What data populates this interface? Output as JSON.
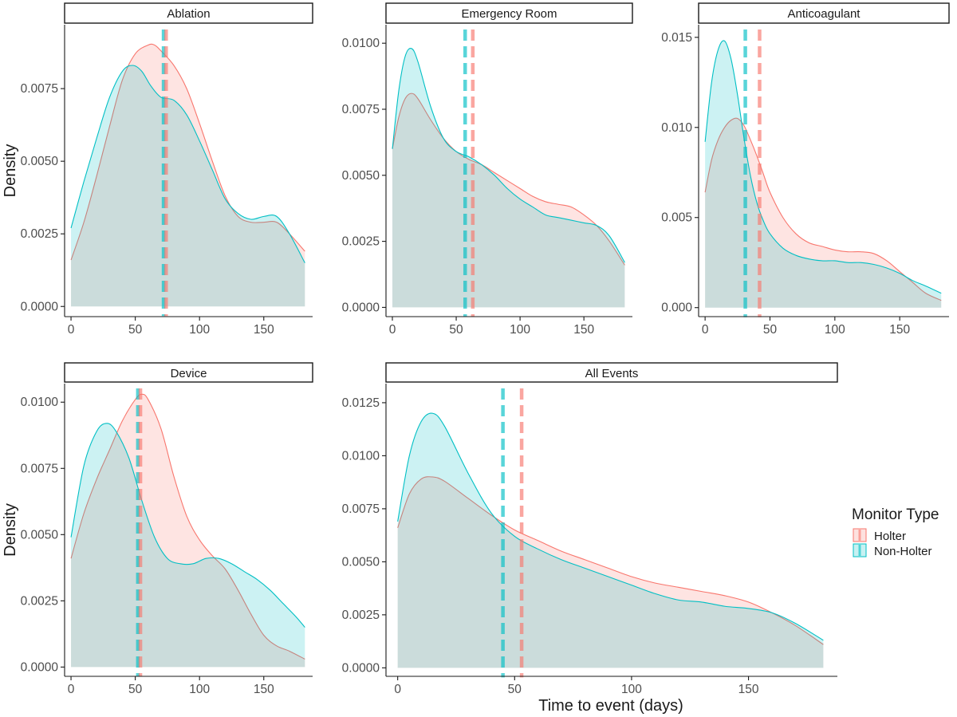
{
  "chart_data": [
    {
      "type": "area",
      "title": "Ablation",
      "xlabel": "",
      "ylabel": "Density",
      "xlim": [
        -5,
        188
      ],
      "ylim": [
        -0.00035,
        0.0097
      ],
      "xticks": [
        0,
        50,
        100,
        150
      ],
      "yticks": [
        "0.0000",
        "0.0025",
        "0.0050",
        "0.0075"
      ],
      "series": [
        {
          "name": "Holter",
          "x": [
            0,
            10,
            20,
            30,
            40,
            50,
            60,
            65,
            70,
            80,
            90,
            100,
            110,
            120,
            130,
            140,
            150,
            160,
            170,
            182
          ],
          "y": [
            0.0016,
            0.0029,
            0.0045,
            0.0062,
            0.0078,
            0.0087,
            0.009,
            0.009,
            0.0088,
            0.0083,
            0.0075,
            0.0063,
            0.005,
            0.0038,
            0.0031,
            0.0029,
            0.0029,
            0.0029,
            0.0025,
            0.0019
          ],
          "mean": 74
        },
        {
          "name": "Non-Holter",
          "x": [
            0,
            10,
            20,
            30,
            40,
            48,
            55,
            62,
            70,
            80,
            90,
            100,
            110,
            120,
            130,
            140,
            150,
            160,
            170,
            182
          ],
          "y": [
            0.0027,
            0.0043,
            0.0058,
            0.0072,
            0.0081,
            0.0083,
            0.0081,
            0.0076,
            0.0072,
            0.0071,
            0.0066,
            0.0057,
            0.0047,
            0.0037,
            0.0032,
            0.003,
            0.0031,
            0.0031,
            0.0025,
            0.0015
          ],
          "mean": 72
        }
      ]
    },
    {
      "type": "area",
      "title": "Emergency Room",
      "xlabel": "",
      "ylabel": "",
      "xlim": [
        -5,
        188
      ],
      "ylim": [
        -0.00035,
        0.0107
      ],
      "xticks": [
        0,
        50,
        100,
        150
      ],
      "yticks": [
        "0.0000",
        "0.0025",
        "0.0050",
        "0.0075",
        "0.0100"
      ],
      "series": [
        {
          "name": "Holter",
          "x": [
            0,
            5,
            10,
            15,
            20,
            30,
            40,
            50,
            60,
            70,
            80,
            90,
            100,
            110,
            120,
            130,
            140,
            150,
            160,
            170,
            182
          ],
          "y": [
            0.006,
            0.0072,
            0.0079,
            0.0081,
            0.0079,
            0.0071,
            0.0064,
            0.0059,
            0.0056,
            0.0054,
            0.0051,
            0.0048,
            0.0045,
            0.0042,
            0.004,
            0.0039,
            0.0038,
            0.0035,
            0.0031,
            0.0025,
            0.0016
          ],
          "mean": 63
        },
        {
          "name": "Non-Holter",
          "x": [
            0,
            5,
            10,
            15,
            20,
            30,
            40,
            50,
            60,
            70,
            80,
            90,
            100,
            110,
            120,
            130,
            140,
            150,
            160,
            170,
            182
          ],
          "y": [
            0.006,
            0.0082,
            0.0095,
            0.0098,
            0.0093,
            0.0076,
            0.0064,
            0.0059,
            0.0057,
            0.0054,
            0.005,
            0.0045,
            0.0041,
            0.0038,
            0.0035,
            0.0034,
            0.0033,
            0.0032,
            0.0031,
            0.0027,
            0.0017
          ],
          "mean": 57
        }
      ]
    },
    {
      "type": "area",
      "title": "Anticoagulant",
      "xlabel": "",
      "ylabel": "",
      "xlim": [
        -5,
        188
      ],
      "ylim": [
        -0.0005,
        0.0157
      ],
      "xticks": [
        0,
        50,
        100,
        150
      ],
      "yticks": [
        "0.000",
        "0.005",
        "0.010",
        "0.015"
      ],
      "series": [
        {
          "name": "Holter",
          "x": [
            0,
            5,
            10,
            15,
            20,
            25,
            30,
            35,
            40,
            45,
            50,
            60,
            70,
            80,
            90,
            100,
            110,
            120,
            130,
            140,
            150,
            160,
            170,
            182
          ],
          "y": [
            0.0064,
            0.0082,
            0.0093,
            0.01,
            0.0104,
            0.0105,
            0.0101,
            0.0093,
            0.0084,
            0.0074,
            0.0064,
            0.005,
            0.0041,
            0.0036,
            0.0034,
            0.0032,
            0.0031,
            0.0031,
            0.003,
            0.0026,
            0.002,
            0.0014,
            0.0008,
            0.0004
          ],
          "mean": 42
        },
        {
          "name": "Non-Holter",
          "x": [
            0,
            5,
            10,
            15,
            20,
            25,
            30,
            35,
            40,
            45,
            50,
            60,
            70,
            80,
            90,
            100,
            110,
            120,
            130,
            140,
            150,
            160,
            170,
            182
          ],
          "y": [
            0.0092,
            0.0125,
            0.0143,
            0.0148,
            0.0138,
            0.0118,
            0.0094,
            0.0073,
            0.0058,
            0.0048,
            0.0041,
            0.0033,
            0.0029,
            0.0027,
            0.0026,
            0.0026,
            0.0025,
            0.0025,
            0.0024,
            0.0022,
            0.0019,
            0.0015,
            0.0012,
            0.0008
          ],
          "mean": 31
        }
      ]
    },
    {
      "type": "area",
      "title": "Device",
      "xlabel": "",
      "ylabel": "Density",
      "xlim": [
        -5,
        188
      ],
      "ylim": [
        -0.00035,
        0.0107
      ],
      "xticks": [
        0,
        50,
        100,
        150
      ],
      "yticks": [
        "0.0000",
        "0.0025",
        "0.0050",
        "0.0075",
        "0.0100"
      ],
      "series": [
        {
          "name": "Holter",
          "x": [
            0,
            10,
            20,
            30,
            40,
            50,
            55,
            60,
            70,
            80,
            90,
            100,
            110,
            120,
            130,
            140,
            150,
            160,
            170,
            182
          ],
          "y": [
            0.0041,
            0.0058,
            0.0071,
            0.0082,
            0.0093,
            0.0101,
            0.0103,
            0.0101,
            0.009,
            0.0072,
            0.0057,
            0.0048,
            0.0042,
            0.0037,
            0.0029,
            0.002,
            0.0012,
            0.0008,
            0.0006,
            0.0003
          ],
          "mean": 54
        },
        {
          "name": "Non-Holter",
          "x": [
            0,
            10,
            20,
            28,
            35,
            45,
            55,
            65,
            75,
            85,
            95,
            105,
            115,
            125,
            135,
            145,
            155,
            165,
            175,
            182
          ],
          "y": [
            0.0049,
            0.0076,
            0.0089,
            0.0092,
            0.0089,
            0.0079,
            0.0063,
            0.0049,
            0.0041,
            0.0039,
            0.0039,
            0.0041,
            0.0041,
            0.0039,
            0.0036,
            0.0033,
            0.0029,
            0.0024,
            0.0019,
            0.0015
          ],
          "mean": 52
        }
      ]
    },
    {
      "type": "area",
      "title": "All Events",
      "xlabel": "Time to event (days)",
      "ylabel": "",
      "xlim": [
        -5,
        188
      ],
      "ylim": [
        -0.0004,
        0.0134
      ],
      "xticks": [
        0,
        50,
        100,
        150
      ],
      "yticks": [
        "0.0000",
        "0.0025",
        "0.0050",
        "0.0075",
        "0.0100",
        "0.0125"
      ],
      "series": [
        {
          "name": "Holter",
          "x": [
            0,
            5,
            10,
            15,
            20,
            30,
            40,
            50,
            60,
            70,
            80,
            90,
            100,
            110,
            120,
            130,
            140,
            150,
            160,
            170,
            182
          ],
          "y": [
            0.0066,
            0.0082,
            0.0089,
            0.009,
            0.0088,
            0.008,
            0.0072,
            0.0065,
            0.006,
            0.0055,
            0.0051,
            0.0047,
            0.0043,
            0.004,
            0.0038,
            0.0036,
            0.0034,
            0.0031,
            0.0026,
            0.002,
            0.0011
          ],
          "mean": 53
        },
        {
          "name": "Non-Holter",
          "x": [
            0,
            5,
            10,
            15,
            20,
            30,
            40,
            50,
            60,
            70,
            80,
            90,
            100,
            110,
            120,
            130,
            140,
            150,
            160,
            170,
            182
          ],
          "y": [
            0.0069,
            0.01,
            0.0116,
            0.012,
            0.0114,
            0.0092,
            0.0073,
            0.0062,
            0.0056,
            0.0051,
            0.0047,
            0.0043,
            0.0039,
            0.0035,
            0.0032,
            0.0031,
            0.0029,
            0.0028,
            0.0026,
            0.0021,
            0.0013
          ],
          "mean": 45
        }
      ]
    }
  ],
  "legend": {
    "title": "Monitor Type",
    "items": [
      "Holter",
      "Non-Holter"
    ]
  },
  "colors": {
    "holter_line": "#F8766D",
    "holter_fill": "#F8766D",
    "nonholter_line": "#00BFC4",
    "nonholter_fill": "#00BFC4",
    "axis": "#1a1a1a"
  }
}
